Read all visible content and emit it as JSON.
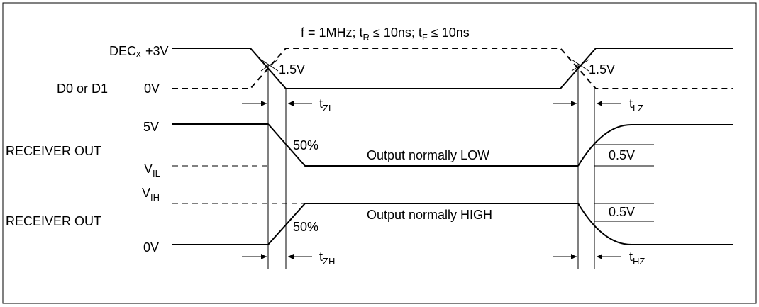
{
  "title": "f = 1MHz;  t",
  "title_tr_sub": "R",
  "title_mid": " ≤ 10ns;  t",
  "title_tf_sub": "F",
  "title_end": " ≤ 10ns",
  "signals": {
    "dec_name": "DEC",
    "dec_sub": "x",
    "dec_level": "+3V",
    "d_name": "D0 or D1",
    "d_level": "0V",
    "threshold_left": "1.5V",
    "threshold_right": "1.5V",
    "recv1_top": "5V",
    "recv1_name": "RECEIVER OUT",
    "recv1_vil": "V",
    "recv1_vil_sub": "IL",
    "recv1_note": "Output normally LOW",
    "recv1_pct": "50%",
    "recv1_delta": "0.5V",
    "recv2_vih": "V",
    "recv2_vih_sub": "IH",
    "recv2_name": "RECEIVER OUT",
    "recv2_bottom": "0V",
    "recv2_note": "Output normally HIGH",
    "recv2_pct": "50%",
    "recv2_delta": "0.5V"
  },
  "timing": {
    "tzl": "t",
    "tzl_sub": "ZL",
    "tlz": "t",
    "tlz_sub": "LZ",
    "tzh": "t",
    "tzh_sub": "ZH",
    "thz": "t",
    "thz_sub": "HZ"
  }
}
